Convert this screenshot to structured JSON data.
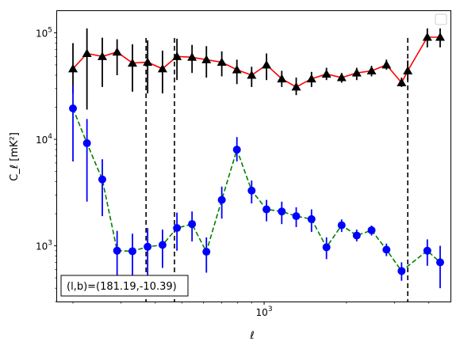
{
  "chart_data": {
    "type": "line",
    "xlabel": "ℓ",
    "ylabel": "C_ℓ [mK²]",
    "xscale": "log",
    "yscale": "log",
    "xlim": [
      175,
      4800
    ],
    "ylim": [
      300,
      160000
    ],
    "x_major_tick": {
      "value": 1000,
      "label_base": "10",
      "label_exp": "3"
    },
    "y_major_ticks": [
      {
        "value": 1000,
        "label_base": "10",
        "label_exp": "3"
      },
      {
        "value": 10000,
        "label_base": "10",
        "label_exp": "4"
      },
      {
        "value": 100000,
        "label_base": "10",
        "label_exp": "5"
      }
    ],
    "grid": false,
    "legend": "top-right",
    "vlines": [
      370,
      470,
      3350
    ],
    "annotation": "(l,b)=(181.19,-10.39)",
    "series": [
      {
        "line_color": "#ff0000",
        "marker_color": "#000000",
        "marker": "triangle",
        "line_style": "solid",
        "x": [
          200,
          225,
          256,
          290,
          330,
          375,
          425,
          480,
          545,
          615,
          700,
          795,
          900,
          1020,
          1160,
          1310,
          1490,
          1690,
          1920,
          2180,
          2470,
          2800,
          3180,
          3350,
          3950,
          4400
        ],
        "y": [
          46000,
          64000,
          60000,
          66000,
          52000,
          53000,
          46000,
          60000,
          59000,
          56000,
          53000,
          45000,
          40000,
          50000,
          37000,
          31000,
          37000,
          41000,
          38000,
          42000,
          44000,
          50000,
          34000,
          44000,
          91000,
          91000
        ],
        "y_low": [
          27000,
          19000,
          31000,
          40000,
          28000,
          27000,
          27000,
          36000,
          42000,
          38000,
          39000,
          33000,
          31000,
          36000,
          31000,
          26000,
          31000,
          36000,
          34000,
          36000,
          39000,
          45000,
          31000,
          36000,
          73000,
          73000
        ],
        "y_high": [
          80000,
          110000,
          90000,
          87000,
          78000,
          85000,
          68000,
          88000,
          77000,
          75000,
          67000,
          56000,
          48000,
          64000,
          44000,
          38000,
          43000,
          47000,
          42000,
          47000,
          49000,
          56000,
          38000,
          55000,
          110000,
          110000
        ]
      },
      {
        "line_color": "#008000",
        "marker_color": "#0000ff",
        "marker": "circle",
        "line_style": "dashed",
        "x": [
          200,
          225,
          256,
          290,
          330,
          375,
          425,
          480,
          545,
          615,
          700,
          795,
          900,
          1020,
          1160,
          1310,
          1490,
          1690,
          1920,
          2180,
          2470,
          2800,
          3180,
          3950,
          4400
        ],
        "y": [
          19500,
          9200,
          4200,
          900,
          890,
          980,
          1020,
          1470,
          1600,
          880,
          2700,
          8000,
          3300,
          2200,
          2100,
          1900,
          1780,
          970,
          1560,
          1250,
          1400,
          920,
          580,
          900,
          700
        ],
        "y_low": [
          6200,
          2600,
          1900,
          420,
          480,
          500,
          620,
          900,
          1100,
          560,
          1800,
          6200,
          2500,
          1700,
          1600,
          1500,
          1350,
          750,
          1350,
          1100,
          1250,
          800,
          470,
          650,
          400
        ],
        "y_high": [
          32000,
          15500,
          6500,
          1380,
          1300,
          1470,
          1420,
          2050,
          2100,
          1200,
          3600,
          10500,
          4100,
          2700,
          2600,
          2300,
          2200,
          1200,
          1770,
          1420,
          1550,
          1050,
          700,
          1150,
          1000
        ]
      }
    ]
  }
}
